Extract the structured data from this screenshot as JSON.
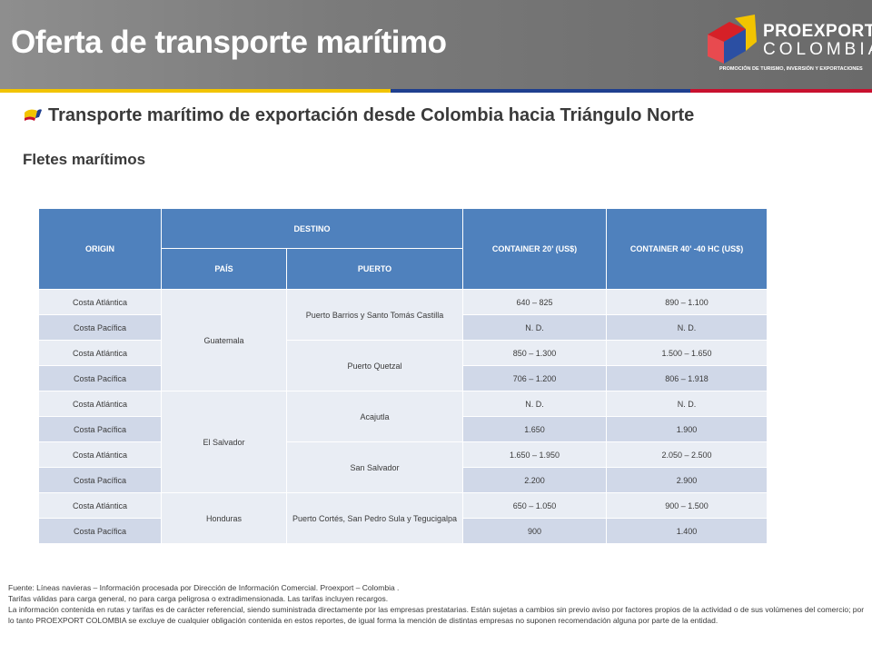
{
  "header": {
    "title": "Oferta de transporte marítimo",
    "logo": {
      "line1": "PROEXPORT",
      "line2": "COLOMBIA",
      "tagline": "PROMOCIÓN DE TURISMO, INVERSIÓN Y EXPORTACIONES"
    },
    "stripe_colors": [
      "#f2c400",
      "#1f3f8f",
      "#c8102e"
    ]
  },
  "subtitle": "Transporte marítimo de exportación desde Colombia hacia Triángulo Norte",
  "section_title": "Fletes marítimos",
  "table": {
    "headers": {
      "origin": "ORIGIN",
      "destino": "DESTINO",
      "pais": "PAÍS",
      "puerto": "PUERTO",
      "c20": "CONTAINER  20’  (US$)",
      "c40": "CONTAINER 40’ -40 HC (US$)"
    },
    "countries": [
      "Guatemala",
      "El Salvador",
      "Honduras"
    ],
    "ports": [
      "Puerto Barrios y Santo Tomás Castilla",
      "Puerto Quetzal",
      "Acajutla",
      "San Salvador",
      "Puerto Cortés, San Pedro Sula y Tegucigalpa"
    ],
    "rows": [
      {
        "origin": "Costa Atlántica",
        "c20": "640 – 825",
        "c40": "890 – 1.100"
      },
      {
        "origin": "Costa Pacífica",
        "c20": "N. D.",
        "c40": "N. D."
      },
      {
        "origin": "Costa Atlántica",
        "c20": "850 – 1.300",
        "c40": "1.500 – 1.650"
      },
      {
        "origin": "Costa Pacífica",
        "c20": "706 – 1.200",
        "c40": "806 – 1.918"
      },
      {
        "origin": "Costa Atlántica",
        "c20": "N. D.",
        "c40": "N. D."
      },
      {
        "origin": "Costa Pacífica",
        "c20": "1.650",
        "c40": "1.900"
      },
      {
        "origin": "Costa Atlántica",
        "c20": "1.650 – 1.950",
        "c40": "2.050 – 2.500"
      },
      {
        "origin": "Costa Pacífica",
        "c20": "2.200",
        "c40": "2.900"
      },
      {
        "origin": "Costa Atlántica",
        "c20": "650 – 1.050",
        "c40": "900 – 1.500"
      },
      {
        "origin": "Costa Pacífica",
        "c20": "900",
        "c40": "1.400"
      }
    ]
  },
  "footnotes": [
    "Fuente: Líneas navieras – Información procesada por Dirección de Información Comercial. Proexport – Colombia .",
    "Tarifas válidas para carga general, no para carga peligrosa o extradimensionada. Las tarifas incluyen recargos.",
    "La información contenida en rutas y tarifas es de carácter referencial, siendo suministrada directamente por las empresas prestatarias. Están sujetas a cambios sin previo aviso por factores propios de la actividad o de sus volúmenes del comercio; por lo tanto PROEXPORT COLOMBIA se excluye de cualquier obligación contenida en estos reportes, de igual forma la mención de distintas empresas no suponen recomendación alguna por parte de la entidad."
  ]
}
